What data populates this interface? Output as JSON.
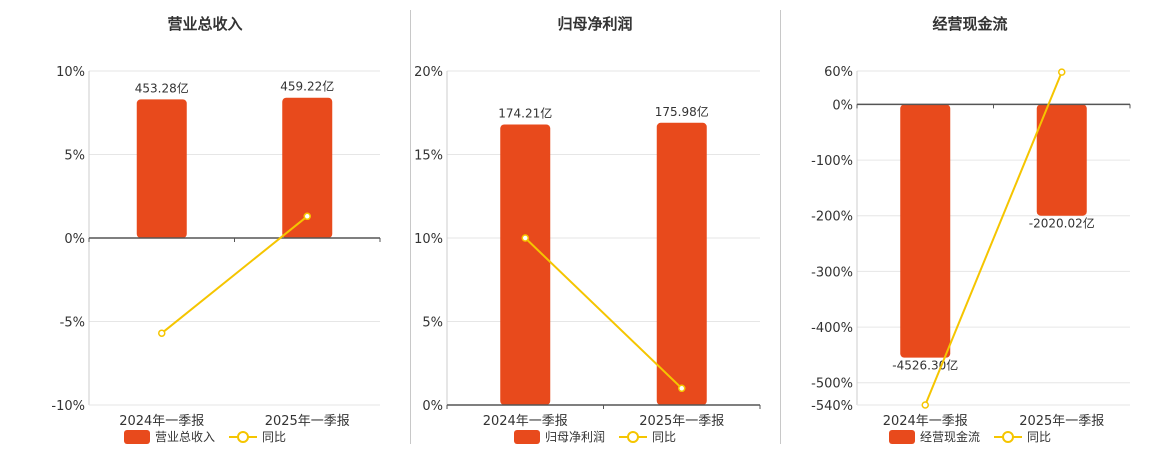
{
  "colors": {
    "bar": "#e84a1c",
    "line": "#f5c500",
    "grid": "#e6e6e6",
    "axis": "#555555"
  },
  "chart_data": [
    {
      "type": "bar",
      "title": "营业总收入",
      "categories": [
        "2024年一季报",
        "2025年一季报"
      ],
      "bar_labels": [
        "453.28亿",
        "459.22亿"
      ],
      "series": [
        {
          "name": "营业总收入",
          "type": "bar",
          "values": [
            8.3,
            8.4
          ]
        },
        {
          "name": "同比",
          "type": "line",
          "values": [
            -5.7,
            1.3
          ]
        }
      ],
      "y_ticks": [
        "10%",
        "5%",
        "0%",
        "-5%",
        "-10%"
      ],
      "ylim": [
        -10,
        10
      ]
    },
    {
      "type": "bar",
      "title": "归母净利润",
      "categories": [
        "2024年一季报",
        "2025年一季报"
      ],
      "bar_labels": [
        "174.21亿",
        "175.98亿"
      ],
      "series": [
        {
          "name": "归母净利润",
          "type": "bar",
          "values": [
            16.8,
            16.9
          ]
        },
        {
          "name": "同比",
          "type": "line",
          "values": [
            10.0,
            1.0
          ]
        }
      ],
      "y_ticks": [
        "20%",
        "15%",
        "10%",
        "5%",
        "0%"
      ],
      "ylim": [
        0,
        20
      ]
    },
    {
      "type": "bar",
      "title": "经营现金流",
      "categories": [
        "2024年一季报",
        "2025年一季报"
      ],
      "bar_labels": [
        "-4526.30亿",
        "-2020.02亿"
      ],
      "series": [
        {
          "name": "经营现金流",
          "type": "bar",
          "values": [
            -455,
            -200
          ]
        },
        {
          "name": "同比",
          "type": "line",
          "values": [
            -540,
            58
          ]
        }
      ],
      "y_ticks": [
        "60%",
        "0%",
        "-100%",
        "-200%",
        "-300%",
        "-400%",
        "-500%",
        "-540%"
      ],
      "ylim": [
        -540,
        60
      ]
    }
  ]
}
